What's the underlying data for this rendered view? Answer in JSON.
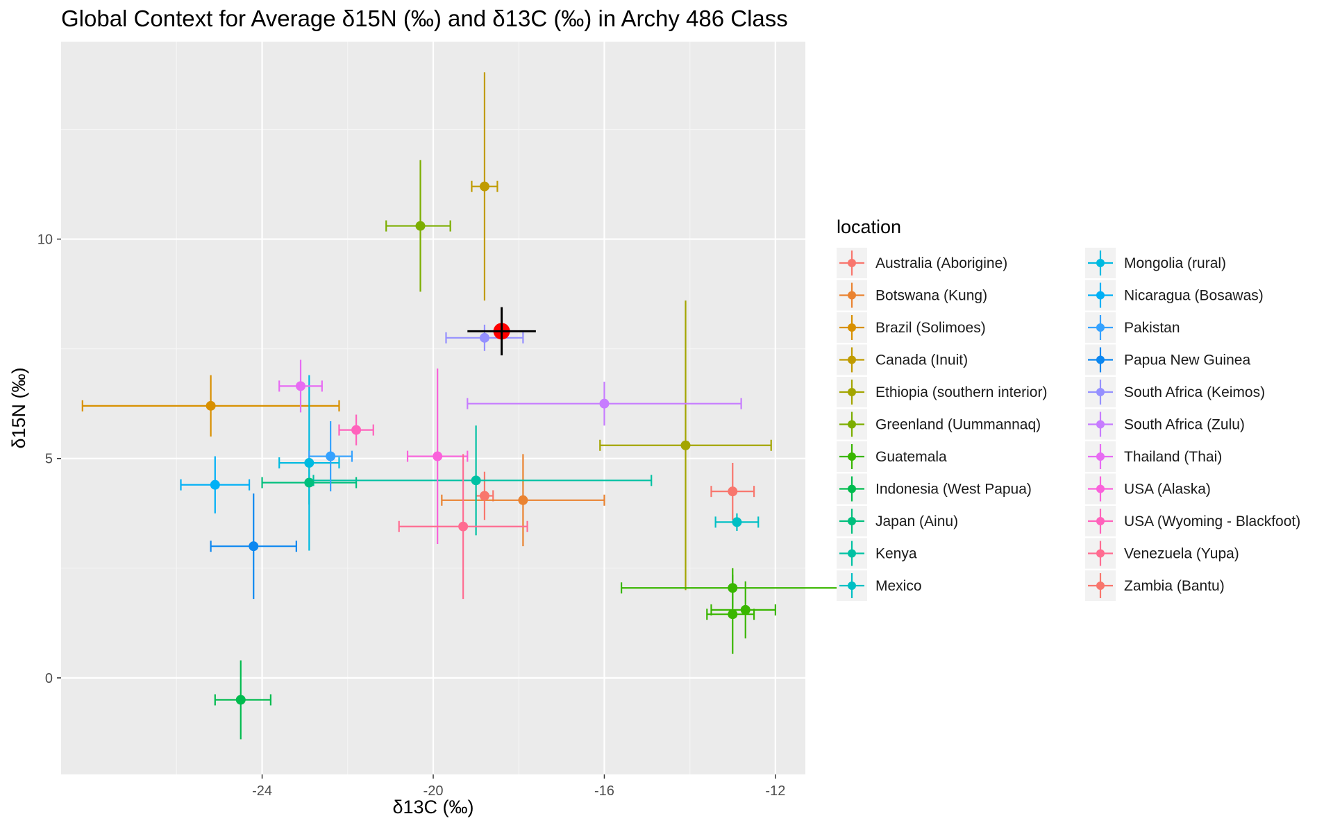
{
  "chart_data": {
    "type": "scatter",
    "title": "Global Context for Average δ15N (‰) and δ13C (‰) in Archy 486 Class",
    "xlabel": "δ13C (‰)",
    "ylabel": "δ15N (‰)",
    "xlim": [
      -28.7,
      -11.3
    ],
    "ylim": [
      -2.2,
      14.5
    ],
    "x_ticks": [
      -24,
      -20,
      -16,
      -12
    ],
    "y_ticks": [
      0,
      5,
      10
    ],
    "grid": true,
    "legend_title": "location",
    "legend_position": "right",
    "series": [
      {
        "name": "Australia (Aborigine)",
        "color": "#F8766D",
        "x": -18.8,
        "y": 4.15,
        "xmin": -19.0,
        "xmax": -18.6,
        "ymin": 3.6,
        "ymax": 4.7
      },
      {
        "name": "Botswana (Kung)",
        "color": "#EA8331",
        "x": -17.9,
        "y": 4.05,
        "xmin": -19.8,
        "xmax": -16.0,
        "ymin": 3.0,
        "ymax": 5.1
      },
      {
        "name": "Brazil (Solimoes)",
        "color": "#D89000",
        "x": -25.2,
        "y": 6.2,
        "xmin": -28.2,
        "xmax": -22.2,
        "ymin": 5.5,
        "ymax": 6.9
      },
      {
        "name": "Canada (Inuit)",
        "color": "#C09B00",
        "x": -18.8,
        "y": 11.2,
        "xmin": -19.1,
        "xmax": -18.5,
        "ymin": 8.6,
        "ymax": 13.8
      },
      {
        "name": "Ethiopia (southern interior)",
        "color": "#A3A500",
        "x": -14.1,
        "y": 5.3,
        "xmin": -16.1,
        "xmax": -12.1,
        "ymin": 2.0,
        "ymax": 8.6
      },
      {
        "name": "Greenland (Uummannaq)",
        "color": "#7CAE00",
        "x": -20.3,
        "y": 10.3,
        "xmin": -21.1,
        "xmax": -19.6,
        "ymin": 8.8,
        "ymax": 11.8
      },
      {
        "name": "Guatemala",
        "color": "#39B600",
        "x": -13.0,
        "y": 2.05,
        "xmin": -15.6,
        "xmax": -10.4,
        "ymin": 1.6,
        "ymax": 2.5
      },
      {
        "name": "Guatemala",
        "color": "#39B600",
        "x": -12.7,
        "y": 1.55,
        "xmin": -13.5,
        "xmax": -12.0,
        "ymin": 0.9,
        "ymax": 2.2
      },
      {
        "name": "Guatemala",
        "color": "#39B600",
        "x": -13.0,
        "y": 1.45,
        "xmin": -13.6,
        "xmax": -12.5,
        "ymin": 0.55,
        "ymax": 2.35
      },
      {
        "name": "Indonesia (West Papua)",
        "color": "#00BB4E",
        "x": -24.5,
        "y": -0.5,
        "xmin": -25.1,
        "xmax": -23.8,
        "ymin": -1.4,
        "ymax": 0.4
      },
      {
        "name": "Japan (Ainu)",
        "color": "#00BF7D",
        "x": -22.9,
        "y": 4.45,
        "xmin": -24.0,
        "xmax": -21.8,
        "ymin": 3.95,
        "ymax": 4.95
      },
      {
        "name": "Kenya",
        "color": "#00C1A3",
        "x": -19.0,
        "y": 4.5,
        "xmin": -22.8,
        "xmax": -14.9,
        "ymin": 3.25,
        "ymax": 5.75
      },
      {
        "name": "Mexico",
        "color": "#00BFC4",
        "x": -12.9,
        "y": 3.55,
        "xmin": -13.4,
        "xmax": -12.4,
        "ymin": 3.35,
        "ymax": 3.75
      },
      {
        "name": "Mongolia (rural)",
        "color": "#00BAE0",
        "x": -22.9,
        "y": 4.9,
        "xmin": -23.6,
        "xmax": -22.2,
        "ymin": 2.9,
        "ymax": 6.9
      },
      {
        "name": "Nicaragua (Bosawas)",
        "color": "#00B0F6",
        "x": -25.1,
        "y": 4.4,
        "xmin": -25.9,
        "xmax": -24.3,
        "ymin": 3.75,
        "ymax": 5.05
      },
      {
        "name": "Pakistan",
        "color": "#35A2FF",
        "x": -22.4,
        "y": 5.05,
        "xmin": -22.9,
        "xmax": -21.9,
        "ymin": 4.25,
        "ymax": 5.85
      },
      {
        "name": "Papua New Guinea",
        "color": "#0C87F0",
        "x": -24.2,
        "y": 3.0,
        "xmin": -25.2,
        "xmax": -23.2,
        "ymin": 1.8,
        "ymax": 4.2
      },
      {
        "name": "South Africa (Keimos)",
        "color": "#9590FF",
        "x": -18.8,
        "y": 7.75,
        "xmin": -19.7,
        "xmax": -17.9,
        "ymin": 7.45,
        "ymax": 8.05
      },
      {
        "name": "South Africa (Zulu)",
        "color": "#C77CFF",
        "x": -16.0,
        "y": 6.25,
        "xmin": -19.2,
        "xmax": -12.8,
        "ymin": 5.75,
        "ymax": 6.75
      },
      {
        "name": "Thailand (Thai)",
        "color": "#E76BF3",
        "x": -23.1,
        "y": 6.65,
        "xmin": -23.6,
        "xmax": -22.6,
        "ymin": 6.05,
        "ymax": 7.25
      },
      {
        "name": "USA (Alaska)",
        "color": "#FA62DB",
        "x": -19.9,
        "y": 5.05,
        "xmin": -20.6,
        "xmax": -19.2,
        "ymin": 3.05,
        "ymax": 7.05
      },
      {
        "name": "USA (Wyoming - Blackfoot)",
        "color": "#FF62BC",
        "x": -21.8,
        "y": 5.65,
        "xmin": -22.2,
        "xmax": -21.4,
        "ymin": 5.3,
        "ymax": 6.0
      },
      {
        "name": "Venezuela (Yupa)",
        "color": "#FF6C91",
        "x": -19.3,
        "y": 3.45,
        "xmin": -20.8,
        "xmax": -17.8,
        "ymin": 1.8,
        "ymax": 5.1
      },
      {
        "name": "Zambia (Bantu)",
        "color": "#F8766D",
        "x": -13.0,
        "y": 4.25,
        "xmin": -13.5,
        "xmax": -12.5,
        "ymin": 3.6,
        "ymax": 4.9
      }
    ],
    "highlight": {
      "x": -18.4,
      "y": 7.9,
      "xmin": -19.2,
      "xmax": -17.6,
      "ymin": 7.35,
      "ymax": 8.45,
      "color": "#FF0000",
      "bar_color": "#000000"
    },
    "legend_items": [
      {
        "label": "Australia (Aborigine)",
        "color": "#F8766D"
      },
      {
        "label": "Botswana (Kung)",
        "color": "#EA8331"
      },
      {
        "label": "Brazil (Solimoes)",
        "color": "#D89000"
      },
      {
        "label": "Canada (Inuit)",
        "color": "#C09B00"
      },
      {
        "label": "Ethiopia (southern interior)",
        "color": "#A3A500"
      },
      {
        "label": "Greenland (Uummannaq)",
        "color": "#7CAE00"
      },
      {
        "label": "Guatemala",
        "color": "#39B600"
      },
      {
        "label": "Indonesia (West Papua)",
        "color": "#00BB4E"
      },
      {
        "label": "Japan (Ainu)",
        "color": "#00BF7D"
      },
      {
        "label": "Kenya",
        "color": "#00C1A3"
      },
      {
        "label": "Mexico",
        "color": "#00BFC4"
      },
      {
        "label": "Mongolia (rural)",
        "color": "#00BAE0"
      },
      {
        "label": "Nicaragua (Bosawas)",
        "color": "#00B0F6"
      },
      {
        "label": "Pakistan",
        "color": "#35A2FF"
      },
      {
        "label": "Papua New Guinea",
        "color": "#0C87F0"
      },
      {
        "label": "South Africa (Keimos)",
        "color": "#9590FF"
      },
      {
        "label": "South Africa (Zulu)",
        "color": "#C77CFF"
      },
      {
        "label": "Thailand (Thai)",
        "color": "#E76BF3"
      },
      {
        "label": "USA (Alaska)",
        "color": "#FA62DB"
      },
      {
        "label": "USA (Wyoming - Blackfoot)",
        "color": "#FF62BC"
      },
      {
        "label": "Venezuela (Yupa)",
        "color": "#FF6C91"
      },
      {
        "label": "Zambia (Bantu)",
        "color": "#F8766D"
      }
    ],
    "colors": {
      "panel_bg": "#EBEBEB",
      "grid_major": "#FFFFFF",
      "grid_minor": "#F5F5F5",
      "legend_key_bg": "#F2F2F2"
    }
  }
}
